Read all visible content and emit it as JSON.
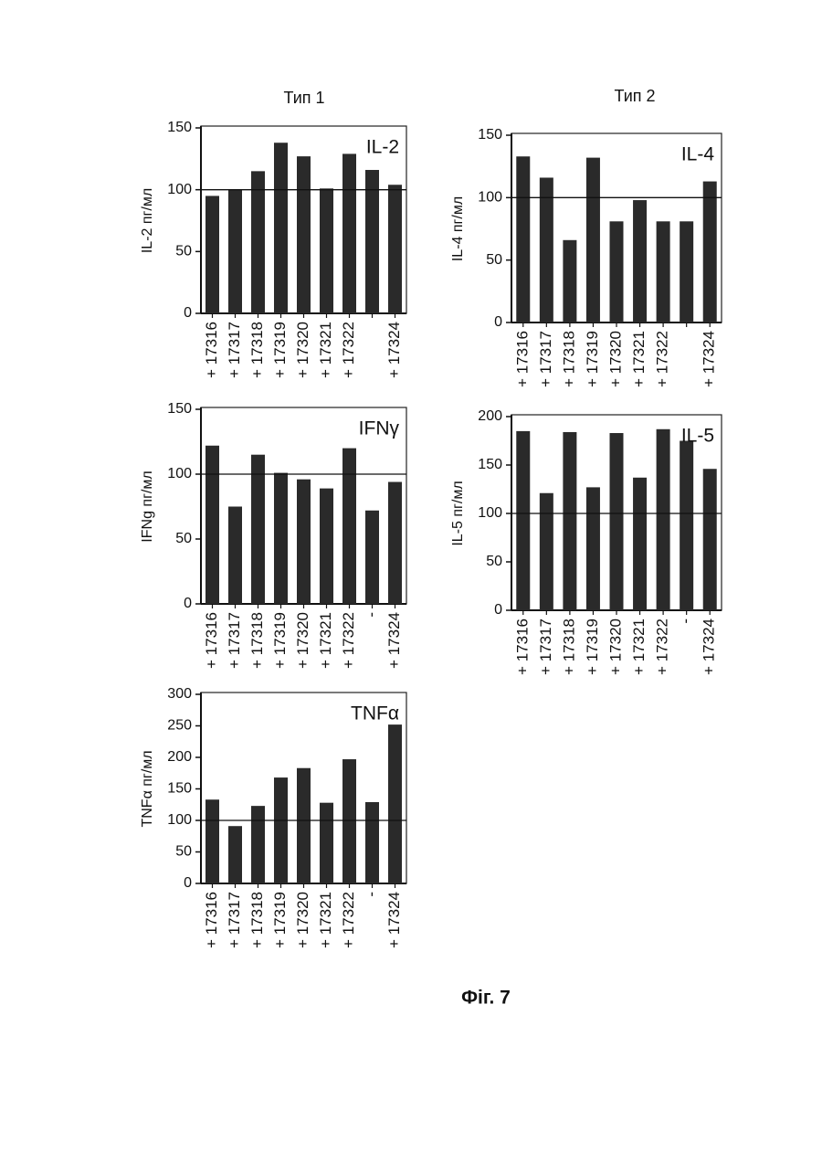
{
  "column_titles": [
    "Тип 1",
    "Тип 2"
  ],
  "figure_label": "Фіг. 7",
  "chart_data": [
    {
      "type": "bar",
      "title": "IL-2",
      "ylabel": "IL-2 пг/мл",
      "categories": [
        "+ 17316",
        "+ 17317",
        "+ 17318",
        "+ 17319",
        "+ 17320",
        "+ 17321",
        "+ 17322",
        null,
        "+ 17324"
      ],
      "values": [
        95,
        100,
        115,
        138,
        127,
        101,
        129,
        116,
        104
      ],
      "color": "#2a2a2a",
      "ylim": [
        0,
        150
      ],
      "yticks": [
        0,
        50,
        100,
        150
      ],
      "reference_line": 100
    },
    {
      "type": "bar",
      "title": "IL-4",
      "ylabel": "IL-4 пг/мл",
      "categories": [
        "+ 17316",
        "+ 17317",
        "+ 17318",
        "+ 17319",
        "+ 17320",
        "+ 17321",
        "+ 17322",
        null,
        "+ 17324"
      ],
      "values": [
        133,
        116,
        66,
        132,
        81,
        98,
        81,
        81,
        113
      ],
      "color": "#2a2a2a",
      "ylim": [
        0,
        150
      ],
      "yticks": [
        0,
        50,
        100,
        150
      ],
      "reference_line": 100
    },
    {
      "type": "bar",
      "title": "IFNγ",
      "ylabel": "IFNg пг/мл",
      "categories": [
        "+ 17316",
        "+ 17317",
        "+ 17318",
        "+ 17319",
        "+ 17320",
        "+ 17321",
        "+ 17322",
        "-",
        "+ 17324"
      ],
      "values": [
        122,
        75,
        115,
        101,
        96,
        89,
        120,
        72,
        94
      ],
      "color": "#2a2a2a",
      "ylim": [
        0,
        150
      ],
      "yticks": [
        0,
        50,
        100,
        150
      ],
      "reference_line": 100
    },
    {
      "type": "bar",
      "title": "IL-5",
      "ylabel": "IL-5 пг/мл",
      "categories": [
        "+ 17316",
        "+ 17317",
        "+ 17318",
        "+ 17319",
        "+ 17320",
        "+ 17321",
        "+ 17322",
        "-",
        "+ 17324"
      ],
      "values": [
        185,
        121,
        184,
        127,
        183,
        137,
        187,
        175,
        146
      ],
      "color": "#2a2a2a",
      "ylim": [
        0,
        200
      ],
      "yticks": [
        0,
        50,
        100,
        150,
        200
      ],
      "reference_line": 100
    },
    {
      "type": "bar",
      "title": "TNFα",
      "ylabel": "TNFα пг/мл",
      "categories": [
        "+ 17316",
        "+ 17317",
        "+ 17318",
        "+ 17319",
        "+ 17320",
        "+ 17321",
        "+ 17322",
        "-",
        "+ 17324"
      ],
      "values": [
        133,
        91,
        123,
        168,
        183,
        128,
        197,
        129,
        252
      ],
      "color": "#2a2a2a",
      "ylim": [
        0,
        300
      ],
      "yticks": [
        0,
        50,
        100,
        150,
        200,
        250,
        300
      ],
      "reference_line": 100
    }
  ]
}
